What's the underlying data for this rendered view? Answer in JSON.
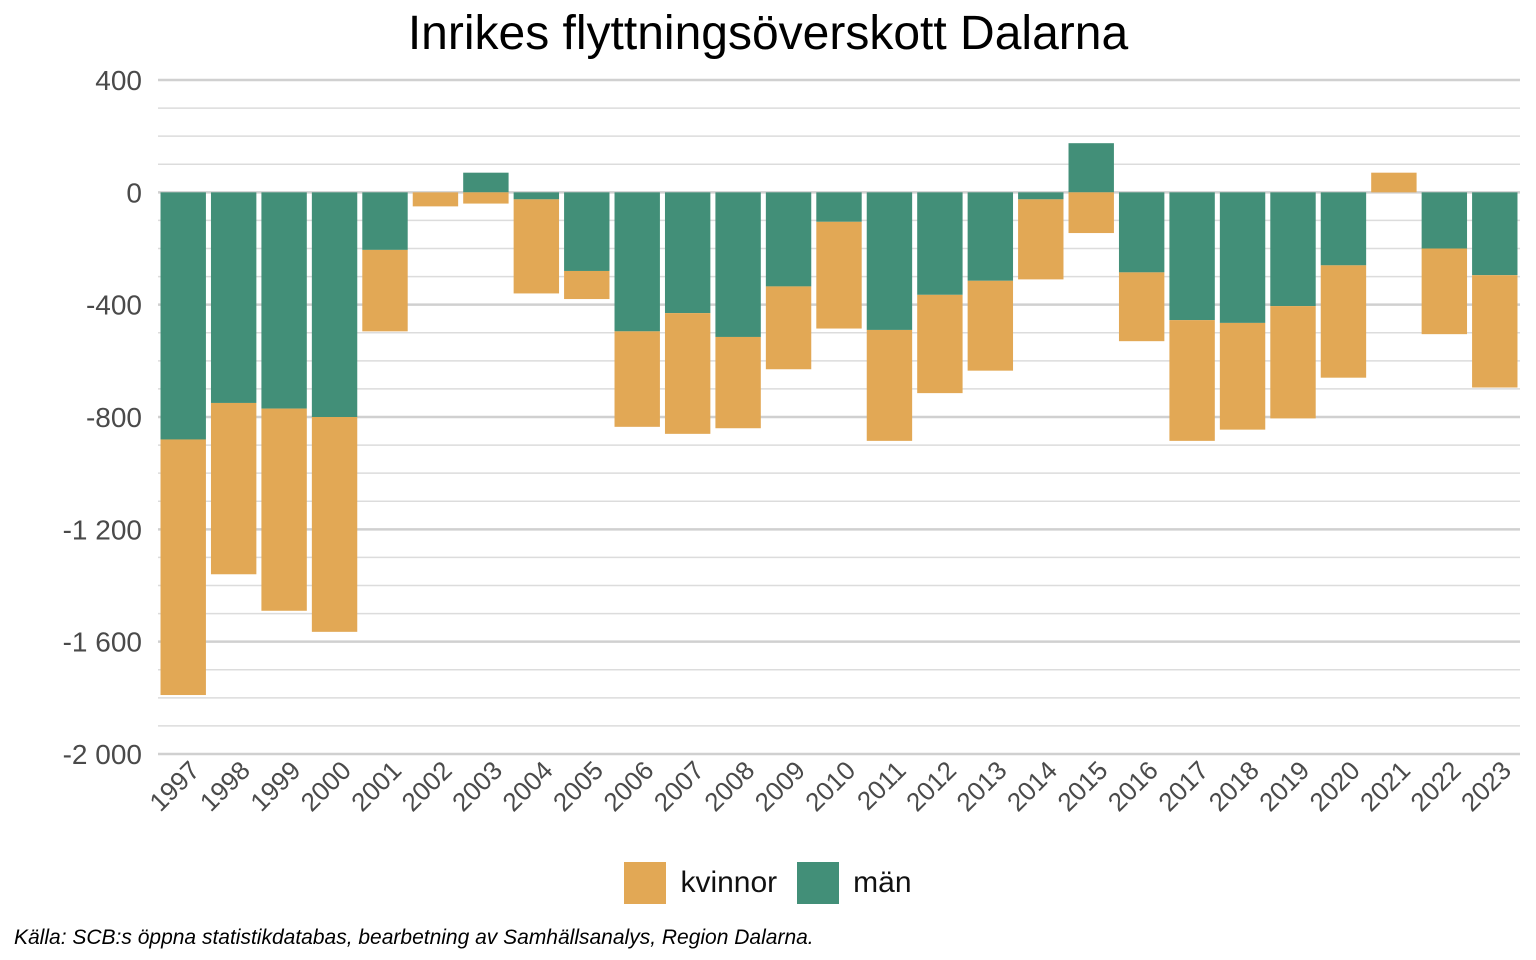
{
  "chart_data": {
    "type": "bar",
    "stacked": true,
    "title": "Inrikes flyttningsöverskott Dalarna",
    "xlabel": "",
    "ylabel": "",
    "ylim": [
      -2000,
      400
    ],
    "yticks": [
      400,
      0,
      -400,
      -800,
      -1200,
      -1600,
      -2000
    ],
    "ytick_labels": [
      "400",
      "0",
      "-400",
      "-800",
      "-1 200",
      "-1 600",
      "-2 000"
    ],
    "grid": true,
    "legend_position": "bottom",
    "categories": [
      "1997",
      "1998",
      "1999",
      "2000",
      "2001",
      "2002",
      "2003",
      "2004",
      "2005",
      "2006",
      "2007",
      "2008",
      "2009",
      "2010",
      "2011",
      "2012",
      "2013",
      "2014",
      "2015",
      "2016",
      "2017",
      "2018",
      "2019",
      "2020",
      "2021",
      "2022",
      "2023"
    ],
    "series": [
      {
        "name": "män",
        "color": "#428f78",
        "values": [
          -880,
          -750,
          -770,
          -800,
          -205,
          0,
          70,
          -25,
          -280,
          -495,
          -430,
          -515,
          -335,
          -105,
          -490,
          -365,
          -315,
          -25,
          175,
          -285,
          -455,
          -465,
          -405,
          -260,
          0,
          -200,
          -295
        ]
      },
      {
        "name": "kvinnor",
        "color": "#e2a855",
        "values": [
          -910,
          -610,
          -720,
          -765,
          -290,
          -50,
          -40,
          -335,
          -100,
          -340,
          -430,
          -325,
          -295,
          -380,
          -395,
          -350,
          -320,
          -285,
          -145,
          -245,
          -430,
          -380,
          -400,
          -400,
          70,
          -305,
          -400
        ]
      }
    ],
    "legend": [
      {
        "name": "kvinnor",
        "color": "#e2a855"
      },
      {
        "name": "män",
        "color": "#428f78"
      }
    ],
    "caption": "Källa: SCB:s öppna statistikdatabas, bearbetning av Samhällsanalys, Region Dalarna."
  }
}
